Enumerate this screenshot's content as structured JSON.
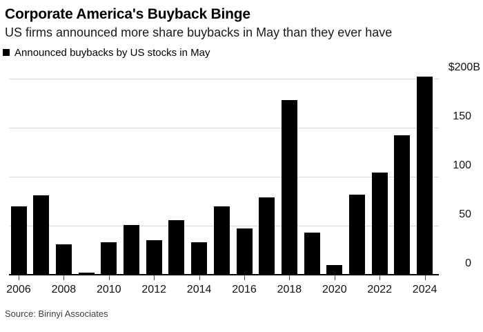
{
  "header": {
    "title": "Corporate America's Buyback Binge",
    "subtitle": "US firms announced more share buybacks in May than they ever have"
  },
  "legend": {
    "label": "Announced buybacks by US stocks in May"
  },
  "source": "Source: Birinyi Associates",
  "colors": {
    "bar": "#000000",
    "gridline": "#d7d7d7",
    "axis_line": "#000000",
    "tick_mark": "#444444",
    "title_text": "#000000",
    "subtitle_text": "#1a1a1a",
    "axis_text": "#111111",
    "source_text": "#3d3d3d",
    "background": "#ffffff"
  },
  "chart_data": {
    "type": "bar",
    "title": "Corporate America's Buyback Binge",
    "subtitle": "US firms announced more share buybacks in May than they ever have",
    "series_label": "Announced buybacks by US stocks in May",
    "unit": "billion USD",
    "categories": [
      2006,
      2007,
      2008,
      2009,
      2010,
      2011,
      2012,
      2013,
      2014,
      2015,
      2016,
      2017,
      2018,
      2019,
      2020,
      2021,
      2022,
      2023,
      2024
    ],
    "values": [
      70,
      81,
      31,
      2,
      33,
      51,
      35,
      56,
      33,
      70,
      47,
      79,
      178,
      43,
      10,
      82,
      104,
      142,
      202
    ],
    "xlabel": "",
    "ylabel": "",
    "ylim": [
      0,
      205
    ],
    "ytick_values": [
      200,
      150,
      100,
      50,
      0
    ],
    "ytick_labels": [
      "$200B",
      "150",
      "100",
      "50",
      "0"
    ],
    "x_tick_labels": [
      "2006",
      "2008",
      "2010",
      "2012",
      "2014",
      "2016",
      "2018",
      "2020",
      "2022",
      "2024"
    ],
    "grid": "horizontal",
    "legend_position": "top-left",
    "source": "Source: Birinyi Associates"
  }
}
